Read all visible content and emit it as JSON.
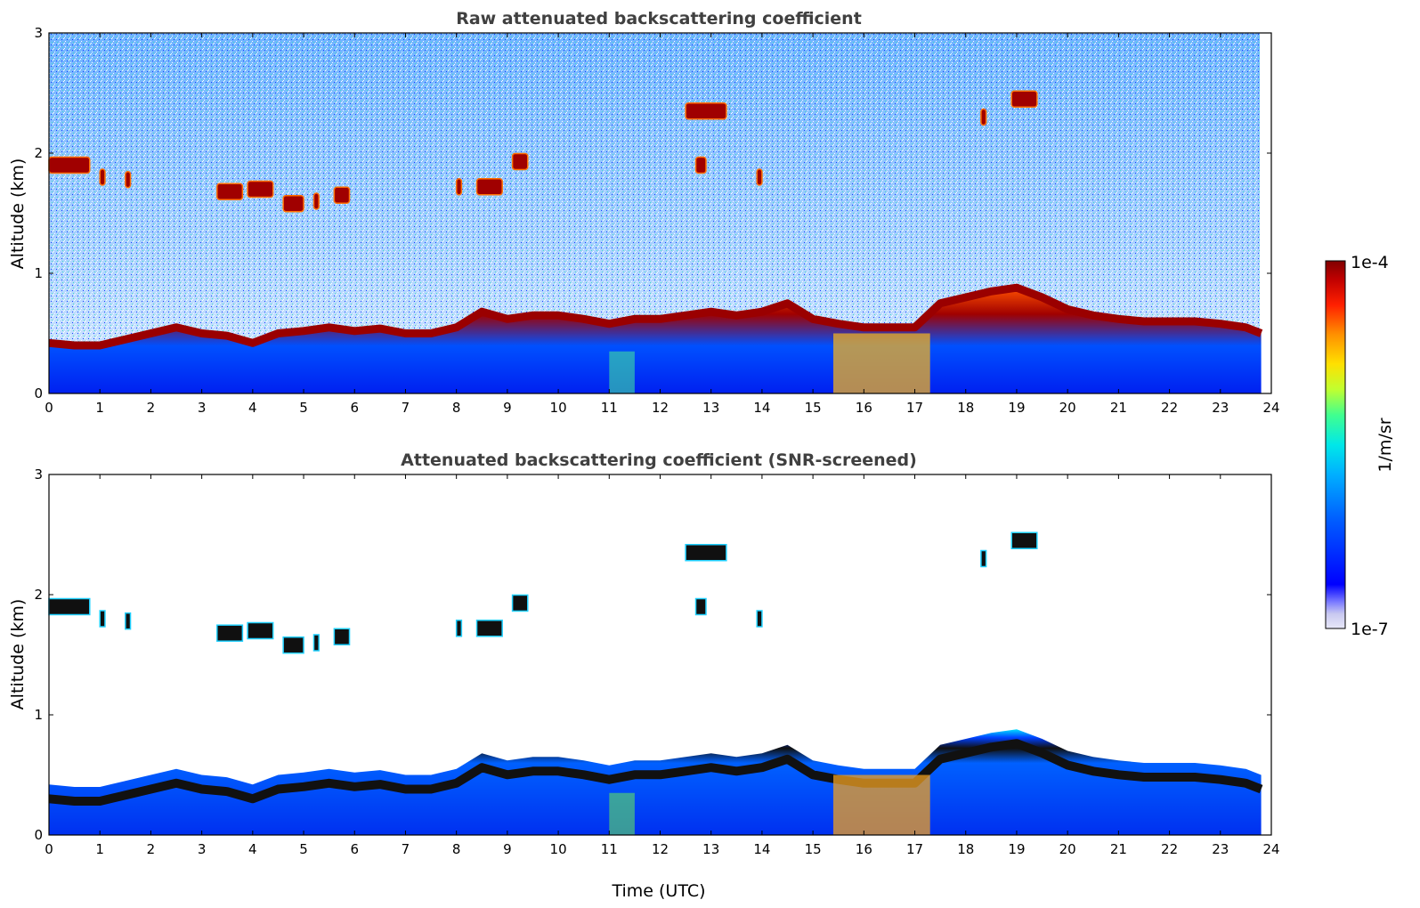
{
  "chart_data": [
    {
      "type": "heatmap",
      "title": "Raw attenuated backscattering coefficient",
      "xlabel": "",
      "ylabel": "Altitude (km)",
      "xlim": [
        0,
        24
      ],
      "ylim": [
        0,
        3
      ],
      "xticks": [
        "0",
        "1",
        "2",
        "3",
        "4",
        "5",
        "6",
        "7",
        "8",
        "9",
        "10",
        "11",
        "12",
        "13",
        "14",
        "15",
        "16",
        "17",
        "18",
        "19",
        "20",
        "21",
        "22",
        "23",
        "24"
      ],
      "yticks": [
        "0",
        "1",
        "2",
        "3"
      ],
      "boundary_layer_top_km": [
        [
          0,
          0.42
        ],
        [
          0.5,
          0.4
        ],
        [
          1,
          0.4
        ],
        [
          1.5,
          0.45
        ],
        [
          2,
          0.5
        ],
        [
          2.5,
          0.55
        ],
        [
          3,
          0.5
        ],
        [
          3.5,
          0.48
        ],
        [
          4,
          0.42
        ],
        [
          4.5,
          0.5
        ],
        [
          5,
          0.52
        ],
        [
          5.5,
          0.55
        ],
        [
          6,
          0.52
        ],
        [
          6.5,
          0.54
        ],
        [
          7,
          0.5
        ],
        [
          7.5,
          0.5
        ],
        [
          8,
          0.55
        ],
        [
          8.5,
          0.68
        ],
        [
          9,
          0.62
        ],
        [
          9.5,
          0.65
        ],
        [
          10,
          0.65
        ],
        [
          10.5,
          0.62
        ],
        [
          11,
          0.58
        ],
        [
          11.5,
          0.62
        ],
        [
          12,
          0.62
        ],
        [
          12.5,
          0.65
        ],
        [
          13,
          0.68
        ],
        [
          13.5,
          0.65
        ],
        [
          14,
          0.68
        ],
        [
          14.5,
          0.75
        ],
        [
          15,
          0.62
        ],
        [
          15.5,
          0.58
        ],
        [
          16,
          0.55
        ],
        [
          16.5,
          0.55
        ],
        [
          17,
          0.55
        ],
        [
          17.5,
          0.75
        ],
        [
          18,
          0.8
        ],
        [
          18.5,
          0.85
        ],
        [
          19,
          0.88
        ],
        [
          19.5,
          0.8
        ],
        [
          20,
          0.7
        ],
        [
          20.5,
          0.65
        ],
        [
          21,
          0.62
        ],
        [
          21.5,
          0.6
        ],
        [
          22,
          0.6
        ],
        [
          22.5,
          0.6
        ],
        [
          23,
          0.58
        ],
        [
          23.5,
          0.55
        ],
        [
          23.8,
          0.5
        ]
      ],
      "cloud_layers": [
        {
          "t0": 0.0,
          "t1": 0.8,
          "alt_km": 1.9
        },
        {
          "t0": 1.0,
          "t1": 1.1,
          "alt_km": 1.8
        },
        {
          "t0": 1.5,
          "t1": 1.6,
          "alt_km": 1.78
        },
        {
          "t0": 3.3,
          "t1": 3.8,
          "alt_km": 1.68
        },
        {
          "t0": 3.9,
          "t1": 4.4,
          "alt_km": 1.7
        },
        {
          "t0": 4.6,
          "t1": 5.0,
          "alt_km": 1.58
        },
        {
          "t0": 5.2,
          "t1": 5.3,
          "alt_km": 1.6
        },
        {
          "t0": 5.6,
          "t1": 5.9,
          "alt_km": 1.65
        },
        {
          "t0": 8.0,
          "t1": 8.1,
          "alt_km": 1.72
        },
        {
          "t0": 8.4,
          "t1": 8.9,
          "alt_km": 1.72
        },
        {
          "t0": 9.1,
          "t1": 9.4,
          "alt_km": 1.93
        },
        {
          "t0": 12.5,
          "t1": 13.3,
          "alt_km": 2.35
        },
        {
          "t0": 12.7,
          "t1": 12.9,
          "alt_km": 1.9
        },
        {
          "t0": 13.9,
          "t1": 14.0,
          "alt_km": 1.8
        },
        {
          "t0": 18.3,
          "t1": 18.4,
          "alt_km": 2.3
        },
        {
          "t0": 18.9,
          "t1": 19.4,
          "alt_km": 2.45
        }
      ]
    },
    {
      "type": "heatmap",
      "title": "Attenuated backscattering coefficient (SNR-screened)",
      "xlabel": "Time (UTC)",
      "ylabel": "Altitude (km)",
      "xlim": [
        0,
        24
      ],
      "ylim": [
        0,
        3
      ],
      "xticks": [
        "0",
        "1",
        "2",
        "3",
        "4",
        "5",
        "6",
        "7",
        "8",
        "9",
        "10",
        "11",
        "12",
        "13",
        "14",
        "15",
        "16",
        "17",
        "18",
        "19",
        "20",
        "21",
        "22",
        "23",
        "24"
      ],
      "yticks": [
        "0",
        "1",
        "2",
        "3"
      ]
    }
  ],
  "colorbar": {
    "label": "1/m/sr",
    "max_label": "1e-4",
    "min_label": "1e-7",
    "scale": "log",
    "colors": [
      "#e8e8f8",
      "#c8c8f0",
      "#8080ff",
      "#0000ff",
      "#0060ff",
      "#00b0ff",
      "#00e8e8",
      "#40ff90",
      "#c0ff30",
      "#ffe000",
      "#ff9000",
      "#ff2000",
      "#c00000",
      "#800000"
    ]
  }
}
